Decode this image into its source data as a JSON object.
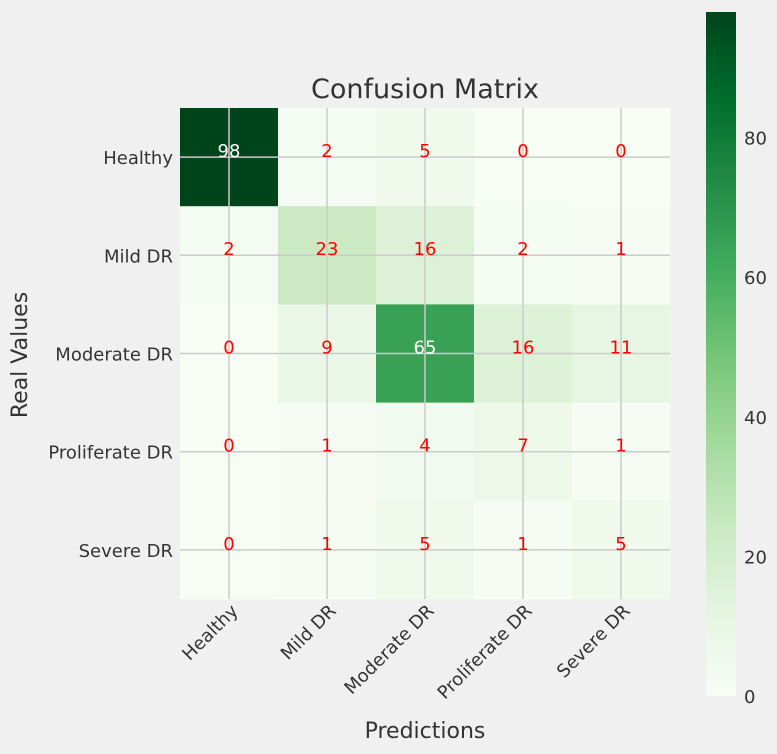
{
  "chart_data": {
    "type": "heatmap",
    "title": "Confusion Matrix",
    "xlabel": "Predictions",
    "ylabel": "Real Values",
    "x_categories": [
      "Healthy",
      "Mild DR",
      "Moderate DR",
      "Proliferate DR",
      "Severe DR"
    ],
    "y_categories": [
      "Healthy",
      "Mild DR",
      "Moderate DR",
      "Proliferate DR",
      "Severe DR"
    ],
    "values": [
      [
        98,
        2,
        5,
        0,
        0
      ],
      [
        2,
        23,
        16,
        2,
        1
      ],
      [
        0,
        9,
        65,
        16,
        11
      ],
      [
        0,
        1,
        4,
        7,
        1
      ],
      [
        0,
        1,
        5,
        1,
        5
      ]
    ],
    "colormap": "Greens",
    "value_range": [
      0,
      98
    ],
    "colorbar_ticks": [
      0,
      20,
      40,
      60,
      80
    ],
    "grid": true,
    "text_color_light": "#ffffff",
    "text_color_default": "#ff0000"
  }
}
